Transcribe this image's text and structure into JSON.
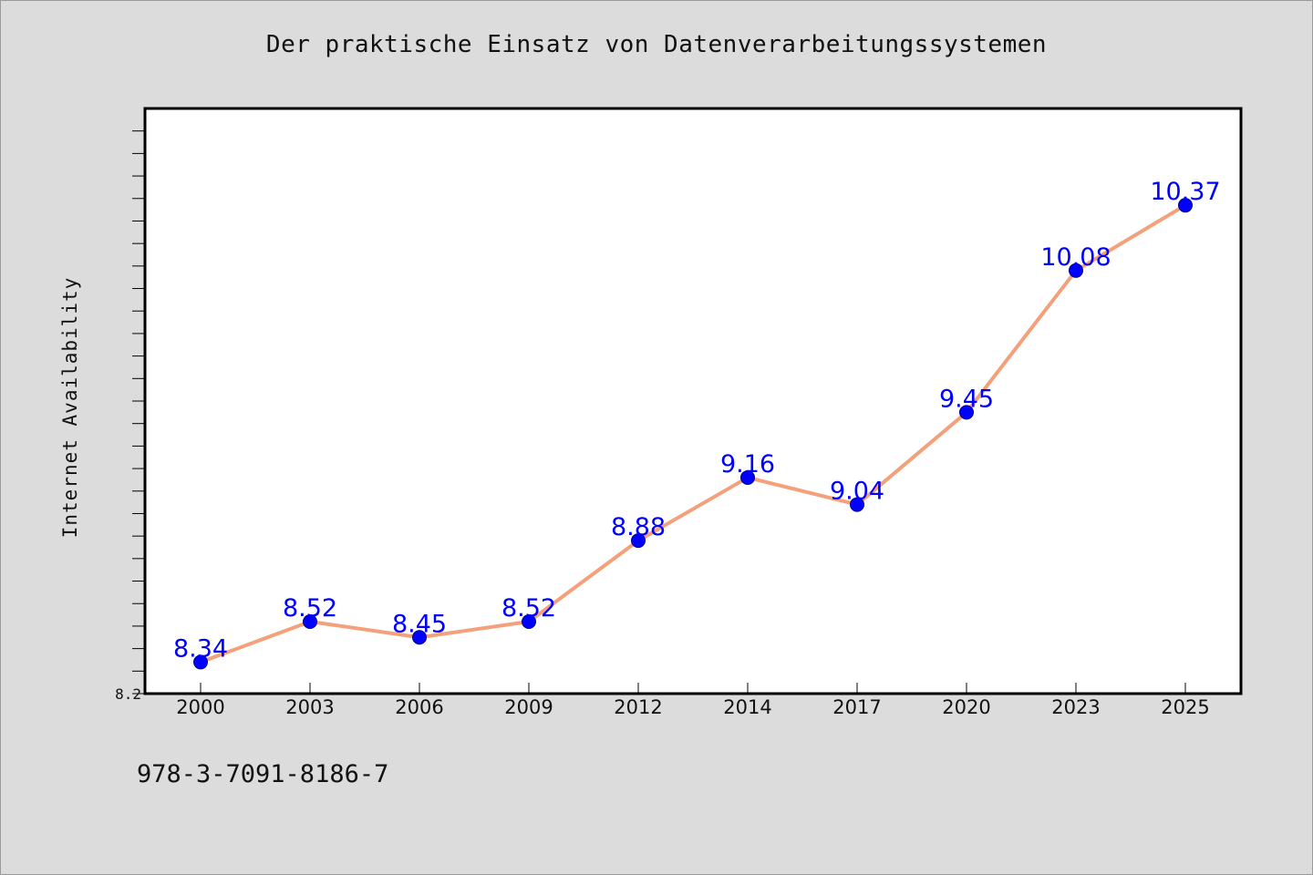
{
  "chart_data": {
    "type": "line",
    "title": "Der praktische Einsatz von Datenverarbeitungssystemen",
    "ylabel": "Internet Availability",
    "xlabel": "",
    "categories": [
      "2000",
      "2003",
      "2006",
      "2009",
      "2012",
      "2014",
      "2017",
      "2020",
      "2023",
      "2025"
    ],
    "series": [
      {
        "values": [
          8.34,
          8.52,
          8.45,
          8.52,
          8.88,
          9.16,
          9.04,
          9.45,
          10.08,
          10.37
        ],
        "labels": [
          "8.34",
          "8.52",
          "8.45",
          "8.52",
          "8.88",
          "9.16",
          "9.04",
          "9.45",
          "10.08",
          "10.37"
        ]
      }
    ],
    "ylim": [
      8.2,
      10.8
    ],
    "y_tick_labels": [
      "8.2"
    ],
    "grid": false,
    "colors": {
      "line": "#f4a07a",
      "marker": "#0000ff",
      "data_label": "#0000ff",
      "background": "#dcdcdc",
      "plot_background": "#ffffff"
    }
  },
  "footer": {
    "isbn": "978-3-7091-8186-7"
  }
}
